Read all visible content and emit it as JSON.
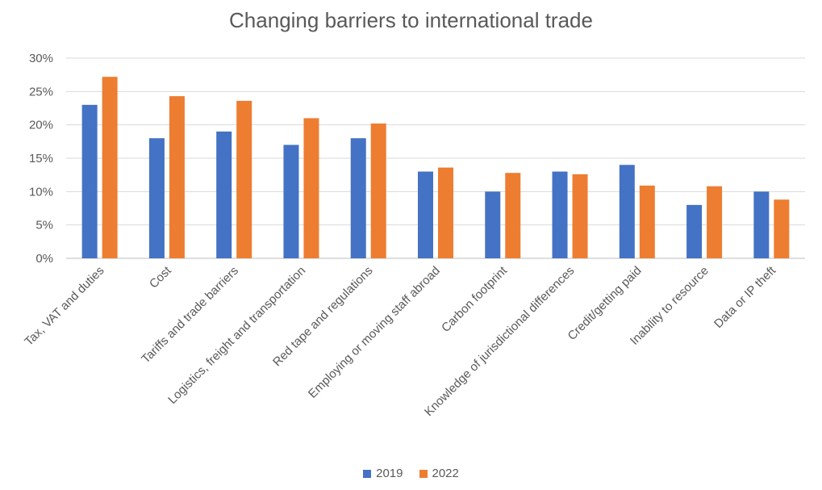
{
  "chart_data": {
    "type": "bar",
    "title": "Changing barriers to international trade",
    "categories": [
      "Tax, VAT and duties",
      "Cost",
      "Tariffs and trade barriers",
      "Logistics, freight and transportation",
      "Red tape and regulations",
      "Employing or moving staff abroad",
      "Carbon footprint",
      "Knowledge of jurisdictional differences",
      "Credit/getting paid",
      "Inability to resource",
      "Data or IP theft"
    ],
    "series": [
      {
        "name": "2019",
        "color": "#4472C4",
        "values": [
          23,
          18,
          19,
          17,
          18,
          13,
          10,
          13,
          14,
          8,
          10
        ]
      },
      {
        "name": "2022",
        "color": "#ED7D31",
        "values": [
          27.2,
          24.3,
          23.6,
          21,
          20.2,
          13.6,
          12.8,
          12.6,
          10.9,
          10.8,
          8.8
        ]
      }
    ],
    "y_ticks": [
      "0%",
      "5%",
      "10%",
      "15%",
      "20%",
      "25%",
      "30%"
    ],
    "ylim": [
      0,
      30
    ],
    "grid": true,
    "legend_position": "bottom"
  }
}
